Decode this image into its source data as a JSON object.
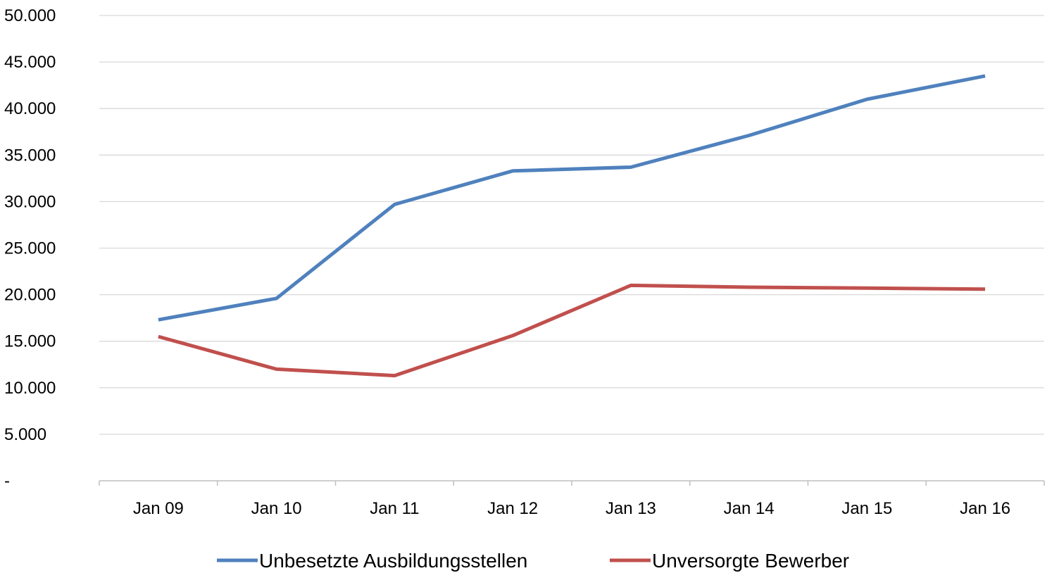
{
  "chart_data": {
    "type": "line",
    "categories": [
      "Jan 09",
      "Jan 10",
      "Jan 11",
      "Jan 12",
      "Jan 13",
      "Jan 14",
      "Jan 15",
      "Jan 16"
    ],
    "series": [
      {
        "name": "Unbesetzte Ausbildungsstellen",
        "color": "#4f81bd",
        "values": [
          17300,
          19600,
          29700,
          33300,
          33700,
          37100,
          41000,
          43500
        ]
      },
      {
        "name": "Unversorgte Bewerber",
        "color": "#c0504d",
        "values": [
          15500,
          12000,
          11300,
          15600,
          21000,
          20800,
          20700,
          20600
        ]
      }
    ],
    "y_ticks": [
      {
        "value": 0,
        "label": "-"
      },
      {
        "value": 5000,
        "label": "5.000"
      },
      {
        "value": 10000,
        "label": "10.000"
      },
      {
        "value": 15000,
        "label": "15.000"
      },
      {
        "value": 20000,
        "label": "20.000"
      },
      {
        "value": 25000,
        "label": "25.000"
      },
      {
        "value": 30000,
        "label": "30.000"
      },
      {
        "value": 35000,
        "label": "35.000"
      },
      {
        "value": 40000,
        "label": "40.000"
      },
      {
        "value": 45000,
        "label": "45.000"
      },
      {
        "value": 50000,
        "label": "50.000"
      }
    ],
    "ylim": [
      0,
      50000
    ],
    "title": "",
    "xlabel": "",
    "ylabel": "",
    "grid": true,
    "legend_position": "bottom",
    "gridline_color": "#d9d9d9",
    "axis_color": "#bfbfbf"
  }
}
